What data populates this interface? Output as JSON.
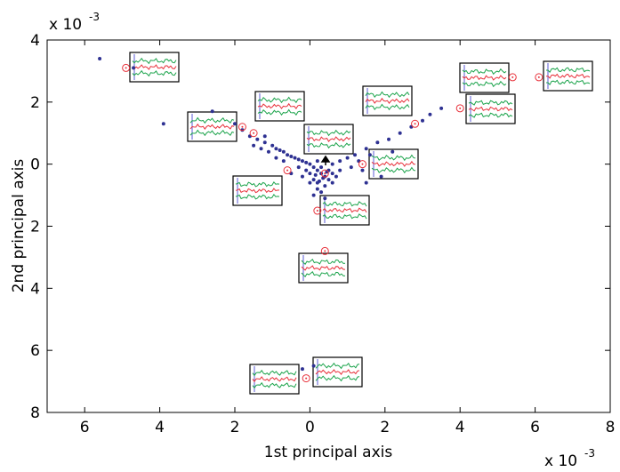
{
  "chart_data": {
    "type": "scatter",
    "xlabel": "1st principal axis",
    "ylabel": "2nd principal axis",
    "x_multiplier": {
      "base": "x 10",
      "exponent": "-3"
    },
    "y_multiplier": {
      "base": "x 10",
      "exponent": "-3"
    },
    "xlim": [
      -7,
      8
    ],
    "ylim": [
      -8,
      4
    ],
    "xticks": [
      {
        "value": -6,
        "label": "6"
      },
      {
        "value": -4,
        "label": "4"
      },
      {
        "value": -2,
        "label": "2"
      },
      0,
      2,
      4,
      6,
      8
    ],
    "yticks": [
      {
        "value": -8,
        "label": "8"
      },
      {
        "value": -6,
        "label": "6"
      },
      {
        "value": -4,
        "label": "4"
      },
      {
        "value": -2,
        "label": "2"
      },
      0,
      2,
      4
    ],
    "grid": false,
    "series": [
      {
        "color": "#2e3192",
        "marker": "dot",
        "x": [
          -5.6,
          -4.7,
          -3.9,
          -2.6,
          -2.0,
          -1.2,
          -1.8,
          -1.6,
          -1.4,
          -1.2,
          -1.0,
          -0.9,
          -0.8,
          -0.7,
          -0.6,
          -0.5,
          -0.4,
          -0.3,
          -0.2,
          -0.1,
          -1.3,
          -1.1,
          -0.9,
          -0.7,
          -1.5,
          0.8,
          1.0,
          1.2,
          1.5,
          1.8,
          2.1,
          2.4,
          2.7,
          3.0,
          3.2,
          3.5,
          1.3,
          1.6,
          0.6,
          1.1,
          1.4,
          2.2,
          1.9,
          1.5,
          0.0,
          0.1,
          0.2,
          0.3,
          0.4,
          0.5,
          0.2,
          0.6,
          0.0,
          -0.1,
          0.3,
          0.1,
          0.4,
          0.2,
          0.5,
          0.7,
          -0.2,
          0.3,
          0.0,
          0.6,
          0.1,
          0.4,
          -0.3,
          0.2,
          0.8,
          -0.5,
          0.35,
          0.15,
          0.45,
          0.25,
          -0.2,
          0.1
        ],
        "y": [
          3.4,
          3.1,
          1.3,
          1.7,
          1.3,
          0.9,
          1.1,
          0.9,
          0.8,
          0.7,
          0.6,
          0.5,
          0.45,
          0.4,
          0.3,
          0.25,
          0.2,
          0.15,
          0.1,
          0.05,
          0.5,
          0.4,
          0.2,
          0.1,
          0.6,
          0.1,
          0.2,
          0.3,
          0.5,
          0.7,
          0.8,
          1.0,
          1.2,
          1.4,
          1.6,
          1.8,
          0.1,
          0.3,
          0.0,
          -0.1,
          -0.2,
          0.4,
          -0.4,
          -0.6,
          0.0,
          -0.1,
          -0.2,
          -0.3,
          -0.4,
          -0.5,
          -0.6,
          -0.3,
          -0.3,
          -0.2,
          -0.1,
          -0.5,
          -0.7,
          -0.8,
          -0.2,
          -0.4,
          -0.4,
          -0.9,
          -0.6,
          -0.6,
          -1.0,
          -1.1,
          -0.1,
          0.1,
          -0.2,
          -0.3,
          -0.45,
          -0.35,
          -0.25,
          -0.55,
          -6.6,
          -6.5
        ]
      },
      {
        "color": "#e8303a",
        "marker": "circle-open",
        "x": [
          -4.9,
          -1.8,
          -1.5,
          -0.6,
          0.2,
          0.4,
          -0.1,
          1.4,
          2.8,
          4.0,
          5.4,
          6.1,
          0.4
        ],
        "y": [
          3.1,
          1.2,
          1.0,
          -0.2,
          -1.5,
          -2.8,
          -6.9,
          0.0,
          1.3,
          1.8,
          2.8,
          2.8,
          -0.3
        ]
      }
    ]
  }
}
